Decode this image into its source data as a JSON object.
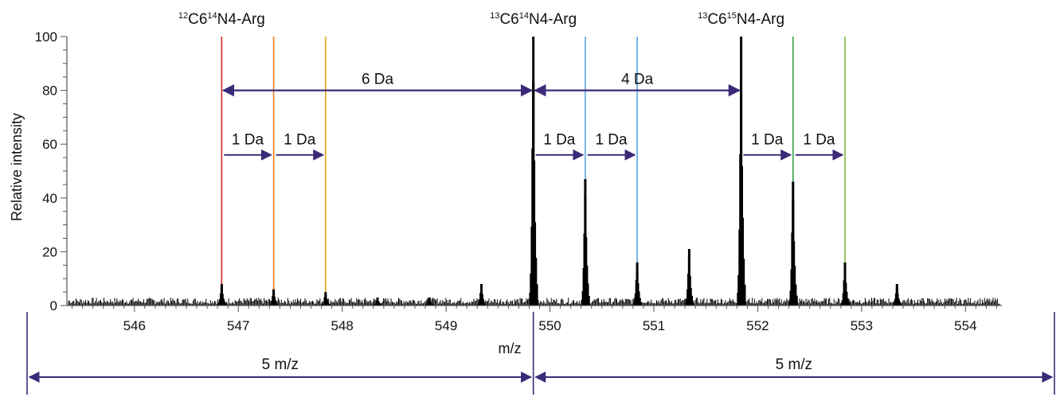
{
  "chart_data": {
    "type": "bar",
    "xlabel": "m/z",
    "ylabel": "Relative intensity",
    "xlim": [
      545.35,
      554.35
    ],
    "ylim": [
      0,
      100
    ],
    "yticks": [
      0,
      20,
      40,
      60,
      80,
      100
    ],
    "yticklabels": [
      "0",
      "20",
      "40",
      "60",
      "80",
      "100"
    ],
    "xticks": [
      546,
      547,
      548,
      549,
      550,
      551,
      552,
      553,
      554
    ],
    "xticklabels": [
      "546",
      "547",
      "548",
      "549",
      "550",
      "551",
      "552",
      "553",
      "554"
    ],
    "grid": false,
    "peaks": [
      {
        "mz": 546.84,
        "intensity": 8
      },
      {
        "mz": 547.34,
        "intensity": 6
      },
      {
        "mz": 547.84,
        "intensity": 5
      },
      {
        "mz": 548.34,
        "intensity": 3
      },
      {
        "mz": 548.84,
        "intensity": 3
      },
      {
        "mz": 549.34,
        "intensity": 8
      },
      {
        "mz": 549.84,
        "intensity": 100
      },
      {
        "mz": 550.34,
        "intensity": 47
      },
      {
        "mz": 550.84,
        "intensity": 16
      },
      {
        "mz": 551.34,
        "intensity": 21
      },
      {
        "mz": 551.84,
        "intensity": 100
      },
      {
        "mz": 552.34,
        "intensity": 46
      },
      {
        "mz": 552.84,
        "intensity": 16
      },
      {
        "mz": 553.34,
        "intensity": 8
      }
    ],
    "marker_lines": [
      {
        "mz": 546.84,
        "color": "#d62b2b"
      },
      {
        "mz": 547.34,
        "color": "#f07f1f"
      },
      {
        "mz": 547.84,
        "color": "#e0a21a"
      },
      {
        "mz": 550.34,
        "color": "#5aa5e6"
      },
      {
        "mz": 550.84,
        "color": "#5aa5e6"
      },
      {
        "mz": 551.84,
        "color": "#1f6e3a"
      },
      {
        "mz": 552.34,
        "color": "#33a146"
      },
      {
        "mz": 552.84,
        "color": "#7dbb3a"
      }
    ],
    "annotations": {
      "top_labels": [
        {
          "mz": 546.84,
          "sup1": "12",
          "a": "C6",
          "sup2": "14",
          "b": "N4-Arg"
        },
        {
          "mz": 549.84,
          "sup1": "13",
          "a": "C6",
          "sup2": "14",
          "b": "N4-Arg"
        },
        {
          "mz": 551.84,
          "sup1": "13",
          "a": "C6",
          "sup2": "15",
          "b": "N4-Arg"
        }
      ],
      "big_arrows": [
        {
          "from": 546.84,
          "to": 549.84,
          "y": 80,
          "label": "6 Da"
        },
        {
          "from": 549.84,
          "to": 551.84,
          "y": 80,
          "label": "4 Da"
        }
      ],
      "small_arrows": [
        {
          "from": 546.84,
          "to": 547.34,
          "label": "1 Da"
        },
        {
          "from": 547.34,
          "to": 547.84,
          "label": "1 Da"
        },
        {
          "from": 549.84,
          "to": 550.34,
          "label": "1 Da"
        },
        {
          "from": 550.34,
          "to": 550.84,
          "label": "1 Da"
        },
        {
          "from": 551.84,
          "to": 552.34,
          "label": "1 Da"
        },
        {
          "from": 552.34,
          "to": 552.84,
          "label": "1 Da"
        }
      ],
      "small_arrow_y": 56,
      "range_arrows": [
        {
          "label": "5 m/z"
        },
        {
          "label": "5 m/z"
        }
      ]
    },
    "colors": {
      "spectrum": "#000000",
      "arrow": "#3b2a78",
      "axis": "#555555"
    }
  }
}
